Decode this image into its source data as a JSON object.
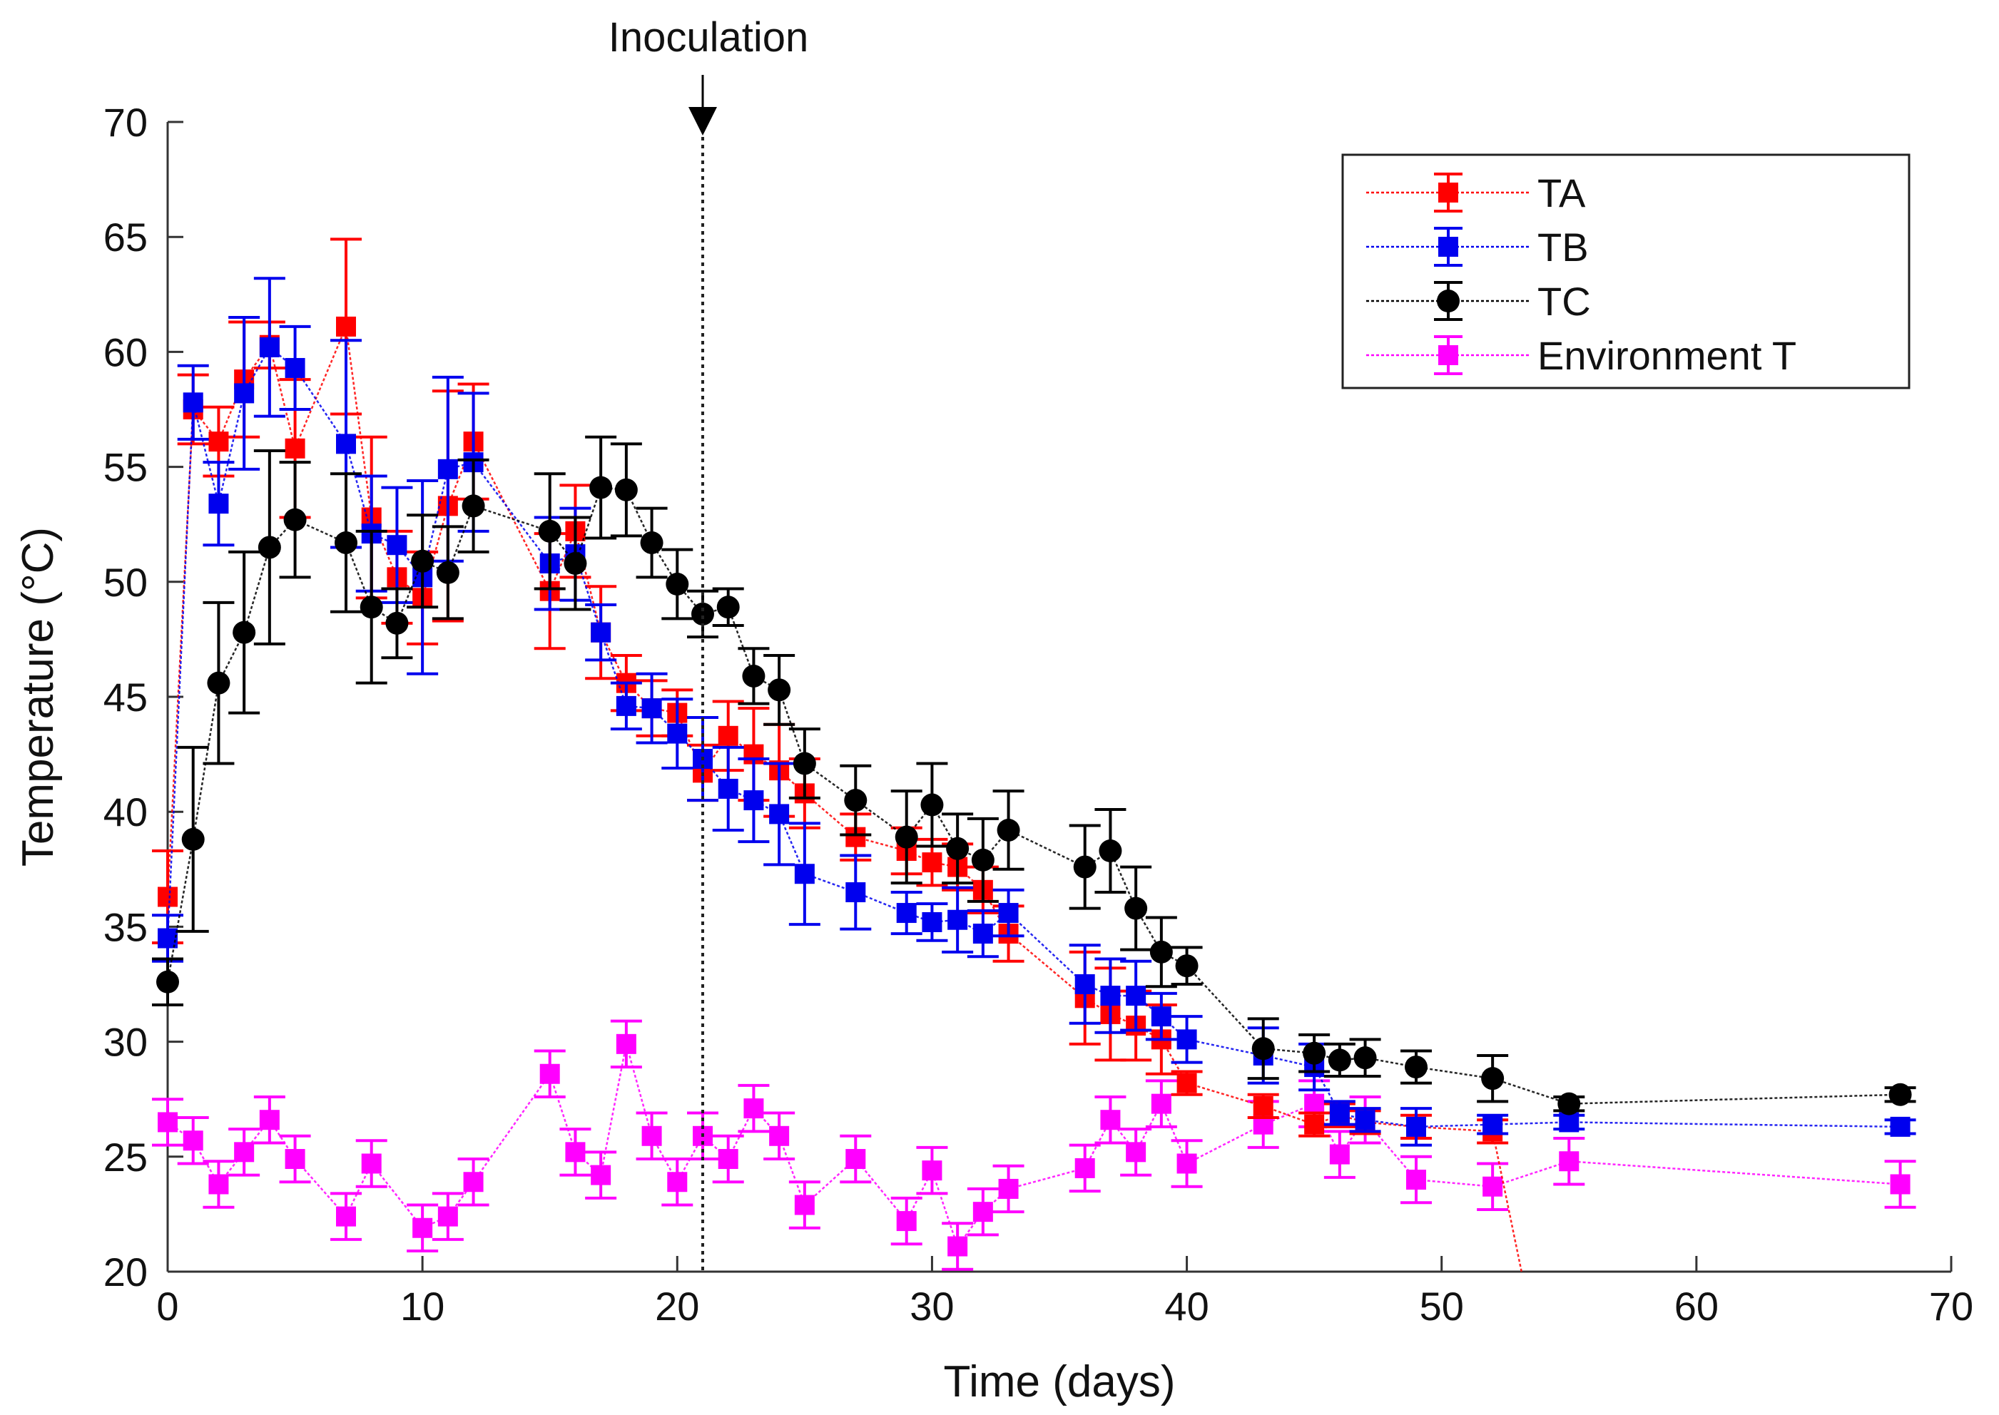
{
  "chart_data": {
    "type": "line",
    "title": "",
    "xlabel": "Time (days)",
    "ylabel": "Temperature (°C)",
    "xlim": [
      0,
      70
    ],
    "ylim": [
      20,
      70
    ],
    "xticks": [
      "0",
      "10",
      "20",
      "30",
      "40",
      "50",
      "60",
      "70"
    ],
    "yticks": [
      "20",
      "25",
      "30",
      "35",
      "40",
      "45",
      "50",
      "55",
      "60",
      "65",
      "70"
    ],
    "grid": false,
    "legend_position": "top-right",
    "annotation": {
      "label": "Inoculation",
      "x": 21
    },
    "series": [
      {
        "name": "TA",
        "color": "#ff0000",
        "marker": "square",
        "x": [
          0,
          1,
          2,
          3,
          4,
          5,
          7,
          8,
          9,
          10,
          11,
          12,
          15,
          16,
          17,
          18,
          19,
          20,
          21,
          22,
          23,
          24,
          25,
          27,
          29,
          30,
          31,
          32,
          33,
          36,
          37,
          38,
          39,
          40,
          43,
          45,
          46,
          47,
          49,
          52,
          55
        ],
        "y": [
          36.3,
          57.5,
          56.1,
          58.8,
          60.3,
          55.8,
          61.1,
          52.8,
          50.2,
          49.3,
          53.3,
          56.1,
          49.6,
          52.2,
          47.8,
          45.6,
          44.5,
          44.3,
          41.7,
          43.3,
          42.5,
          41.8,
          40.8,
          38.9,
          38.3,
          37.8,
          37.6,
          36.6,
          34.7,
          31.9,
          31.2,
          30.7,
          30.1,
          28.2,
          27.2,
          26.4,
          26.8,
          26.5,
          26.3,
          26.1,
          10
        ],
        "err": [
          2,
          1.5,
          1.5,
          2.5,
          1,
          3,
          3.8,
          3.5,
          2,
          2,
          5,
          2.5,
          2.5,
          2,
          2,
          1.2,
          1.2,
          1,
          1.2,
          1.5,
          2,
          2,
          1.5,
          1,
          1,
          1,
          1,
          1,
          1.2,
          2,
          2,
          1.5,
          1.5,
          0.5,
          0.5,
          0.5,
          0.5,
          0.5,
          0.5,
          0.5,
          0.5
        ]
      },
      {
        "name": "TB",
        "color": "#0000ee",
        "marker": "square",
        "x": [
          0,
          1,
          2,
          3,
          4,
          5,
          7,
          8,
          9,
          10,
          11,
          12,
          15,
          16,
          17,
          18,
          19,
          20,
          21,
          22,
          23,
          24,
          25,
          27,
          29,
          30,
          31,
          32,
          33,
          36,
          37,
          38,
          39,
          40,
          43,
          45,
          46,
          47,
          49,
          52,
          55,
          68
        ],
        "y": [
          34.5,
          57.8,
          53.4,
          58.2,
          60.2,
          59.3,
          56.0,
          52.1,
          51.6,
          50.2,
          54.9,
          55.2,
          50.8,
          51.2,
          47.8,
          44.6,
          44.5,
          43.4,
          42.3,
          41.0,
          40.5,
          39.9,
          37.3,
          36.5,
          35.6,
          35.2,
          35.3,
          34.7,
          35.6,
          32.5,
          32.0,
          32.0,
          31.1,
          30.1,
          29.4,
          28.9,
          26.9,
          26.6,
          26.3,
          26.4,
          26.5,
          26.3
        ],
        "err": [
          1,
          1.6,
          1.8,
          3.3,
          3,
          1.8,
          4.5,
          2.5,
          2.5,
          4.2,
          4,
          3,
          2,
          2,
          1.2,
          1,
          1.5,
          1.5,
          1.8,
          1.8,
          1.8,
          2.2,
          2.2,
          1.6,
          0.9,
          0.8,
          1.4,
          1,
          1,
          1.7,
          1.6,
          1.5,
          1,
          1,
          1.2,
          1,
          0.5,
          0.5,
          0.8,
          0.4,
          0.3,
          0.3
        ]
      },
      {
        "name": "TC",
        "color": "#000000",
        "marker": "circle",
        "x": [
          0,
          1,
          2,
          3,
          4,
          5,
          7,
          8,
          9,
          10,
          11,
          12,
          15,
          16,
          17,
          18,
          19,
          20,
          21,
          22,
          23,
          24,
          25,
          27,
          29,
          30,
          31,
          32,
          33,
          36,
          37,
          38,
          39,
          40,
          43,
          45,
          46,
          47,
          49,
          52,
          55,
          68
        ],
        "y": [
          32.6,
          38.8,
          45.6,
          47.8,
          51.5,
          52.7,
          51.7,
          48.9,
          48.2,
          50.9,
          50.4,
          53.3,
          52.2,
          50.8,
          54.1,
          54.0,
          51.7,
          49.9,
          48.6,
          48.9,
          45.9,
          45.3,
          42.1,
          40.5,
          38.9,
          40.3,
          38.4,
          37.9,
          39.2,
          37.6,
          38.3,
          35.8,
          33.9,
          33.3,
          29.7,
          29.5,
          29.2,
          29.3,
          28.9,
          28.4,
          27.3,
          27.7
        ],
        "err": [
          1,
          4,
          3.5,
          3.5,
          4.2,
          2.5,
          3,
          3.3,
          1.5,
          2,
          2,
          2,
          2.5,
          2,
          2.2,
          2,
          1.5,
          1.5,
          1,
          0.8,
          1.2,
          1.5,
          1.5,
          1.5,
          2,
          1.8,
          1.5,
          1.8,
          1.7,
          1.8,
          1.8,
          1.8,
          1.5,
          0.8,
          1.3,
          0.8,
          0.7,
          0.8,
          0.7,
          1,
          0.3,
          0.3
        ]
      },
      {
        "name": "Environment T",
        "color": "#ff00ff",
        "marker": "square",
        "x": [
          0,
          1,
          2,
          3,
          4,
          5,
          7,
          8,
          10,
          11,
          12,
          15,
          16,
          17,
          18,
          19,
          20,
          21,
          22,
          23,
          24,
          25,
          27,
          29,
          30,
          31,
          32,
          33,
          36,
          37,
          38,
          39,
          40,
          43,
          45,
          46,
          47,
          49,
          52,
          55,
          68
        ],
        "y": [
          26.5,
          25.7,
          23.8,
          25.2,
          26.6,
          24.9,
          22.4,
          24.7,
          21.9,
          22.4,
          23.9,
          28.6,
          25.2,
          24.2,
          29.9,
          25.9,
          23.9,
          25.9,
          24.9,
          27.1,
          25.9,
          22.9,
          24.9,
          22.2,
          24.4,
          21.1,
          22.6,
          23.6,
          24.5,
          26.6,
          25.2,
          27.3,
          24.7,
          26.4,
          27.3,
          25.1,
          26.6,
          24.0,
          23.7,
          24.8,
          23.8
        ],
        "err": [
          1,
          1,
          1,
          1,
          1,
          1,
          1,
          1,
          1,
          1,
          1,
          1,
          1,
          1,
          1,
          1,
          1,
          1,
          1,
          1,
          1,
          1,
          1,
          1,
          1,
          1,
          1,
          1,
          1,
          1,
          1,
          1,
          1,
          1,
          1,
          1,
          1,
          1,
          1,
          1,
          1
        ]
      }
    ]
  }
}
